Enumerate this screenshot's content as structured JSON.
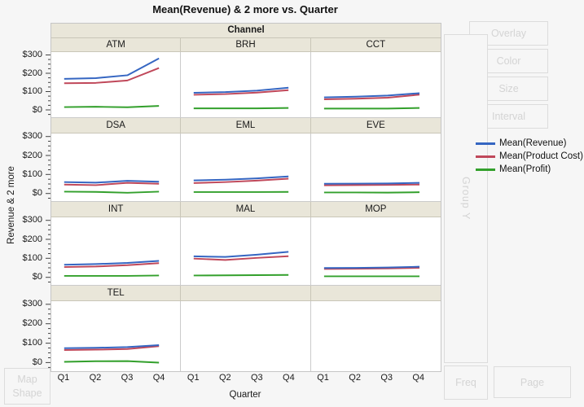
{
  "chart_data": {
    "type": "line",
    "title": "Mean(Revenue) & 2 more vs. Quarter",
    "facet": {
      "header": "Channel",
      "layout": [
        [
          "ATM",
          "BRH",
          "CCT"
        ],
        [
          "DSA",
          "EML",
          "EVE"
        ],
        [
          "INT",
          "MAL",
          "MOP"
        ],
        [
          "TEL",
          "",
          ""
        ]
      ]
    },
    "x": {
      "label": "Quarter",
      "categories": [
        "Q1",
        "Q2",
        "Q3",
        "Q4"
      ]
    },
    "y": {
      "label": "Revenue & 2 more",
      "tick_labels": [
        "$300",
        "$200",
        "$100",
        "$0"
      ],
      "tick_values": [
        300,
        200,
        100,
        0
      ],
      "axis_min": -40,
      "axis_max": 320
    },
    "legend": [
      {
        "key": "revenue",
        "label": "Mean(Revenue)",
        "color": "#3566c2"
      },
      {
        "key": "product_cost",
        "label": "Mean(Product Cost)",
        "color": "#c0485a"
      },
      {
        "key": "profit",
        "label": "Mean(Profit)",
        "color": "#33a02c"
      }
    ],
    "panels": [
      {
        "channel": "ATM",
        "revenue": [
          172,
          176,
          192,
          285
        ],
        "product_cost": [
          148,
          150,
          163,
          232
        ],
        "profit": [
          16,
          18,
          15,
          22
        ]
      },
      {
        "channel": "BRH",
        "revenue": [
          95,
          99,
          107,
          123
        ],
        "product_cost": [
          84,
          88,
          96,
          110
        ],
        "profit": [
          9,
          9,
          9,
          11
        ]
      },
      {
        "channel": "CCT",
        "revenue": [
          70,
          74,
          80,
          93
        ],
        "product_cost": [
          59,
          62,
          68,
          85
        ],
        "profit": [
          8,
          8,
          8,
          11
        ]
      },
      {
        "channel": "DSA",
        "revenue": [
          61,
          58,
          68,
          63
        ],
        "product_cost": [
          48,
          45,
          57,
          52
        ],
        "profit": [
          10,
          9,
          4,
          10
        ]
      },
      {
        "channel": "EML",
        "revenue": [
          70,
          74,
          81,
          91
        ],
        "product_cost": [
          56,
          61,
          69,
          79
        ],
        "profit": [
          8,
          8,
          8,
          9
        ]
      },
      {
        "channel": "EVE",
        "revenue": [
          52,
          53,
          54,
          57
        ],
        "product_cost": [
          44,
          45,
          46,
          48
        ],
        "profit": [
          6,
          6,
          5,
          7
        ]
      },
      {
        "channel": "INT",
        "revenue": [
          67,
          71,
          77,
          88
        ],
        "product_cost": [
          55,
          58,
          65,
          76
        ],
        "profit": [
          8,
          8,
          8,
          10
        ]
      },
      {
        "channel": "MAL",
        "revenue": [
          112,
          109,
          121,
          136
        ],
        "product_cost": [
          100,
          93,
          104,
          113
        ],
        "profit": [
          10,
          11,
          12,
          13
        ]
      },
      {
        "channel": "MOP",
        "revenue": [
          50,
          51,
          53,
          57
        ],
        "product_cost": [
          45,
          46,
          48,
          51
        ],
        "profit": [
          6,
          6,
          6,
          6
        ]
      },
      {
        "channel": "TEL",
        "revenue": [
          78,
          80,
          84,
          94
        ],
        "product_cost": [
          69,
          71,
          74,
          89
        ],
        "profit": [
          8,
          11,
          12,
          4
        ]
      }
    ]
  },
  "controls": {
    "overlay": "Overlay",
    "color": "Color",
    "size": "Size",
    "interval": "Interval",
    "group_y": "Group Y",
    "freq": "Freq",
    "page": "Page",
    "map_shape": "Map Shape"
  }
}
